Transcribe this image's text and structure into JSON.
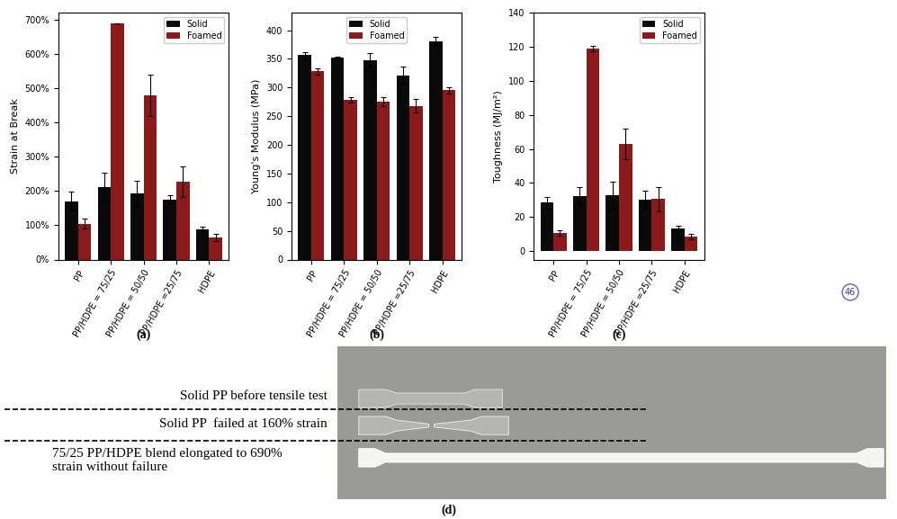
{
  "chart_data": [
    {
      "type": "bar",
      "panel_label": "(a)",
      "y_label": "Strain at Break",
      "categories": [
        "PP",
        "PP/HDPE = 75/25",
        "PP/HDPE = 50/50",
        "PP/HDPE =25/75",
        "HDPE"
      ],
      "series": [
        {
          "name": "Solid",
          "color": "#0a0a0a",
          "values": [
            170,
            212,
            192,
            175,
            88
          ],
          "errors": [
            28,
            42,
            38,
            12,
            8
          ]
        },
        {
          "name": "Foamed",
          "color": "#8b1a1a",
          "values": [
            105,
            690,
            480,
            228,
            65
          ],
          "errors": [
            15,
            0,
            60,
            45,
            10
          ]
        }
      ],
      "ylim": [
        0,
        720
      ],
      "yticks": [
        {
          "value": 0,
          "label": "0%"
        },
        {
          "value": 100,
          "label": "100%"
        },
        {
          "value": 200,
          "label": "200%"
        },
        {
          "value": 300,
          "label": "300%"
        },
        {
          "value": 400,
          "label": "400%"
        },
        {
          "value": 500,
          "label": "500%"
        },
        {
          "value": 600,
          "label": "600%"
        },
        {
          "value": 700,
          "label": "700%"
        }
      ],
      "legend": "upper right"
    },
    {
      "type": "bar",
      "panel_label": "(b)",
      "y_label": "Young's Modulus (MPa)",
      "categories": [
        "PP",
        "PP/HDPE = 75/25",
        "PP/HDPE = 50/50",
        "PP/HDPE =25/75",
        "HDPE"
      ],
      "series": [
        {
          "name": "Solid",
          "color": "#0a0a0a",
          "values": [
            357,
            352,
            348,
            321,
            381
          ],
          "errors": [
            4,
            2,
            12,
            15,
            7
          ]
        },
        {
          "name": "Foamed",
          "color": "#8b1a1a",
          "values": [
            328,
            278,
            275,
            268,
            295
          ],
          "errors": [
            5,
            5,
            8,
            12,
            5
          ]
        }
      ],
      "ylim": [
        0,
        430
      ],
      "yticks": [
        0,
        50,
        100,
        150,
        200,
        250,
        300,
        350,
        400
      ],
      "legend": "upper center"
    },
    {
      "type": "bar",
      "panel_label": "(c)",
      "y_label": "Toughness (MJ/m²)",
      "categories": [
        "PP",
        "PP/HDPE = 75/25",
        "PP/HDPE = 50/50",
        "PP/HDPE =25/75",
        "HDPE"
      ],
      "series": [
        {
          "name": "Solid",
          "color": "#0a0a0a",
          "values": [
            28.5,
            32.5,
            33,
            30,
            13.5
          ],
          "errors": [
            3.5,
            5,
            8,
            5.5,
            1.5
          ]
        },
        {
          "name": "Foamed",
          "color": "#8b1a1a",
          "values": [
            10.5,
            119,
            63,
            30.5,
            8.5
          ],
          "errors": [
            1.5,
            1.5,
            9,
            7,
            1.5
          ]
        }
      ],
      "ylim": [
        -5,
        140
      ],
      "yticks": [
        0,
        20,
        40,
        60,
        80,
        100,
        120,
        140
      ],
      "legend": "upper right"
    }
  ],
  "panel_d": {
    "panel_label": "(d)",
    "annotations": [
      "Solid PP before tensile test",
      "Solid PP  failed at 160% strain",
      "75/25 PP/HDPE blend elongated to 690%\nstrain without failure"
    ]
  },
  "page_badge": "46"
}
